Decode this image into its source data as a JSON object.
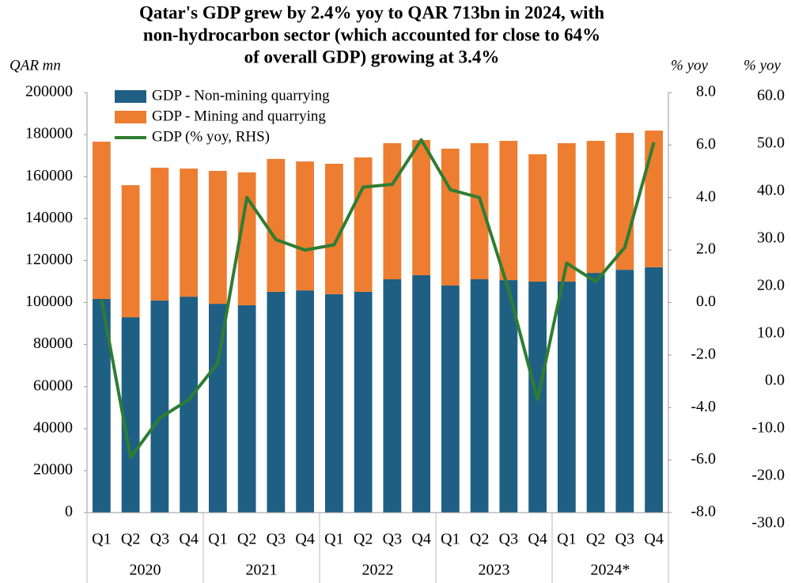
{
  "chart_data": {
    "type": "bar_line",
    "title": [
      "Qatar's GDP grew by 2.4% yoy to QAR 713bn in 2024, with",
      "non-hydrocarbon sector (which accounted for close to 64%",
      "of overall GDP) growing at 3.4%"
    ],
    "y_label": "QAR mn",
    "y2_label": "% yoy",
    "y3_label": "% yoy",
    "categories": [
      "Q1",
      "Q2",
      "Q3",
      "Q4",
      "Q1",
      "Q2",
      "Q3",
      "Q4",
      "Q1",
      "Q2",
      "Q3",
      "Q4",
      "Q1",
      "Q2",
      "Q3",
      "Q4",
      "Q1",
      "Q2",
      "Q3",
      "Q4"
    ],
    "groups": [
      "2020",
      "2021",
      "2022",
      "2023",
      "2024*"
    ],
    "series": [
      {
        "name": "GDP - Non-mining quarrying",
        "color": "#1f5f84",
        "kind": "bar",
        "values": [
          101700,
          93000,
          101000,
          102800,
          99400,
          98700,
          105100,
          105800,
          104000,
          105100,
          111100,
          113000,
          108100,
          111100,
          110700,
          110000,
          110000,
          114100,
          115600,
          116800
        ]
      },
      {
        "name": "GDP - Mining and quarrying",
        "color": "#ed7d31",
        "kind": "bar",
        "values": [
          74900,
          62900,
          63200,
          61000,
          63300,
          63300,
          63300,
          61400,
          62100,
          64000,
          64800,
          64400,
          65200,
          64800,
          66300,
          60600,
          65900,
          62900,
          65200,
          65100
        ]
      },
      {
        "name": "GDP (% yoy, RHS)",
        "color": "#2e7d32",
        "kind": "line",
        "axis": "y2",
        "values": [
          0.1,
          -5.9,
          -4.4,
          -3.7,
          -2.3,
          4.0,
          2.4,
          2.0,
          2.2,
          4.4,
          4.5,
          6.2,
          4.3,
          4.0,
          0.5,
          -3.7,
          1.5,
          0.8,
          2.1,
          6.1
        ]
      }
    ],
    "ylim": [
      0,
      200000
    ],
    "yticks": [
      0,
      20000,
      40000,
      60000,
      80000,
      100000,
      120000,
      140000,
      160000,
      180000,
      200000
    ],
    "y2lim": [
      -8,
      8
    ],
    "y2ticks": [
      {
        "value": -8,
        "label": "-8.0"
      },
      {
        "value": -6,
        "label": "-6.0"
      },
      {
        "value": -4,
        "label": "-4.0"
      },
      {
        "value": -2,
        "label": "-2.0"
      },
      {
        "value": 0,
        "label": "0.0"
      },
      {
        "value": 2,
        "label": "2.0"
      },
      {
        "value": 4,
        "label": "4.0"
      },
      {
        "value": 6,
        "label": "6.0"
      },
      {
        "value": 8,
        "label": "8.0"
      }
    ],
    "y3lim": [
      -30,
      60
    ],
    "y3ticks": [
      {
        "value": -30,
        "label": "-30.0"
      },
      {
        "value": -20,
        "label": "-20.0"
      },
      {
        "value": -10,
        "label": "-10.0"
      },
      {
        "value": 0,
        "label": "0.0"
      },
      {
        "value": 10,
        "label": "10.0"
      },
      {
        "value": 20,
        "label": "20.0"
      },
      {
        "value": 30,
        "label": "30.0"
      },
      {
        "value": 40,
        "label": "40.0"
      },
      {
        "value": 50,
        "label": "50.0"
      },
      {
        "value": 60,
        "label": "60.0"
      }
    ],
    "grid": false,
    "legend": "top-left"
  }
}
